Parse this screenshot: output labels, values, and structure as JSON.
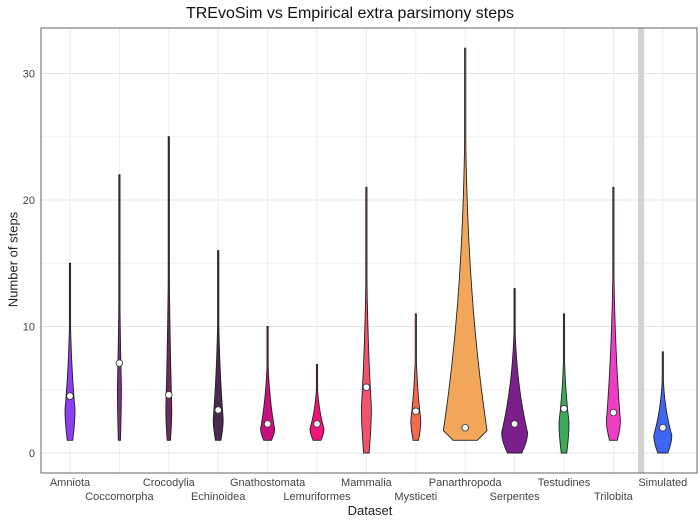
{
  "chart_data": {
    "type": "violin",
    "title": "TREvoSim vs Empirical extra parsimony steps",
    "xlabel": "Dataset",
    "ylabel": "Number of steps",
    "ylim": [
      -1.5,
      33.5
    ],
    "yticks": [
      0,
      10,
      20,
      30
    ],
    "grid": true,
    "categories": [
      "Amniota",
      "Coccomorpha",
      "Crocodylia",
      "Echinoidea",
      "Gnathostomata",
      "Lemuriformes",
      "Mammalia",
      "Mysticeti",
      "Panarthropoda",
      "Serpentes",
      "Testudines",
      "Trilobita",
      "Simulated"
    ],
    "series": [
      {
        "category": "Amniota",
        "color": "#8b3ff2",
        "min": 1,
        "max": 15,
        "mean": 4.5,
        "halfwidth_max": 5
      },
      {
        "category": "Coccomorpha",
        "color": "#7e2f8e",
        "min": 1,
        "max": 22,
        "mean": 7.1,
        "halfwidth_max": 2
      },
      {
        "category": "Crocodylia",
        "color": "#6e2a5c",
        "min": 1,
        "max": 25,
        "mean": 4.6,
        "halfwidth_max": 3
      },
      {
        "category": "Echinoidea",
        "color": "#4a2a4f",
        "min": 1,
        "max": 16,
        "mean": 3.4,
        "halfwidth_max": 5
      },
      {
        "category": "Gnathostomata",
        "color": "#c8117f",
        "min": 1,
        "max": 10,
        "mean": 2.3,
        "halfwidth_max": 7
      },
      {
        "category": "Lemuriformes",
        "color": "#f0157a",
        "min": 1,
        "max": 7,
        "mean": 2.3,
        "halfwidth_max": 7
      },
      {
        "category": "Mammalia",
        "color": "#f2526b",
        "min": 0,
        "max": 21,
        "mean": 5.2,
        "halfwidth_max": 5
      },
      {
        "category": "Mysticeti",
        "color": "#f36a4e",
        "min": 1,
        "max": 11,
        "mean": 3.3,
        "halfwidth_max": 5
      },
      {
        "category": "Panarthropoda",
        "color": "#f2a65a",
        "min": 1,
        "max": 32,
        "mean": 2.0,
        "halfwidth_max": 22
      },
      {
        "category": "Serpentes",
        "color": "#7b1f8c",
        "min": 0,
        "max": 13,
        "mean": 2.3,
        "halfwidth_max": 13
      },
      {
        "category": "Testudines",
        "color": "#3daa5a",
        "min": 0,
        "max": 11,
        "mean": 3.5,
        "halfwidth_max": 5
      },
      {
        "category": "Trilobita",
        "color": "#f03ec4",
        "min": 1,
        "max": 21,
        "mean": 3.2,
        "halfwidth_max": 7
      },
      {
        "category": "Simulated",
        "color": "#3f66f2",
        "min": 0,
        "max": 8,
        "mean": 2.0,
        "halfwidth_max": 9
      }
    ],
    "separator_between": [
      "Trilobita",
      "Simulated"
    ]
  }
}
